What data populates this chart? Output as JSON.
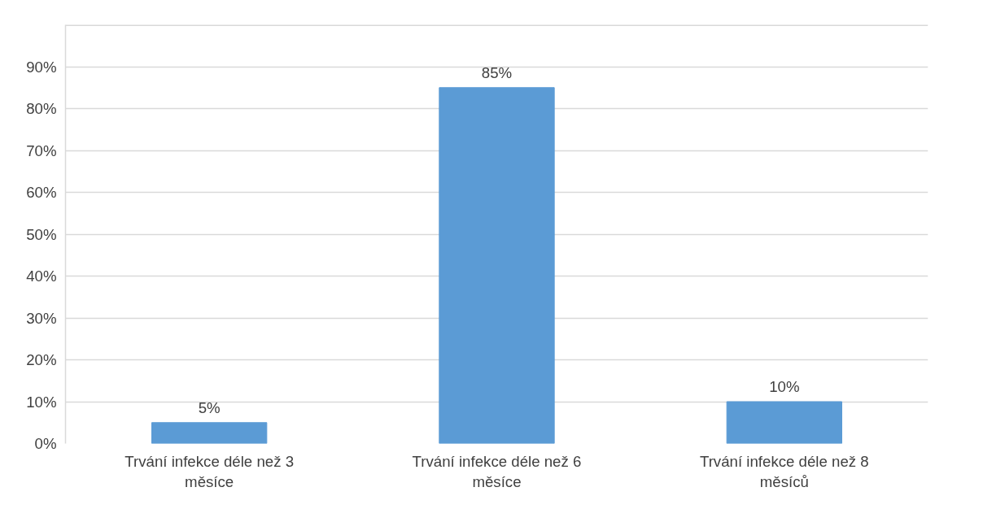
{
  "chart_data": {
    "type": "bar",
    "categories": [
      "Trvání infekce déle než 3 měsíce",
      "Trvání infekce déle než 6 měsíce",
      "Trvání infekce déle než 8 měsíců"
    ],
    "values": [
      5,
      85,
      10
    ],
    "color": "#5b9bd5",
    "value_labels": [
      "5%",
      "85%",
      "10%"
    ],
    "ylim": [
      0,
      100
    ],
    "yticks": [
      {
        "value": 0,
        "label": "0%"
      },
      {
        "value": 10,
        "label": "10%"
      },
      {
        "value": 20,
        "label": "20%"
      },
      {
        "value": 30,
        "label": "30%"
      },
      {
        "value": 40,
        "label": "40%"
      },
      {
        "value": 50,
        "label": "50%"
      },
      {
        "value": 60,
        "label": "60%"
      },
      {
        "value": 70,
        "label": "70%"
      },
      {
        "value": 80,
        "label": "80%"
      },
      {
        "value": 90,
        "label": "90%"
      },
      {
        "value": 100,
        "label": null
      }
    ],
    "grid": "y"
  }
}
